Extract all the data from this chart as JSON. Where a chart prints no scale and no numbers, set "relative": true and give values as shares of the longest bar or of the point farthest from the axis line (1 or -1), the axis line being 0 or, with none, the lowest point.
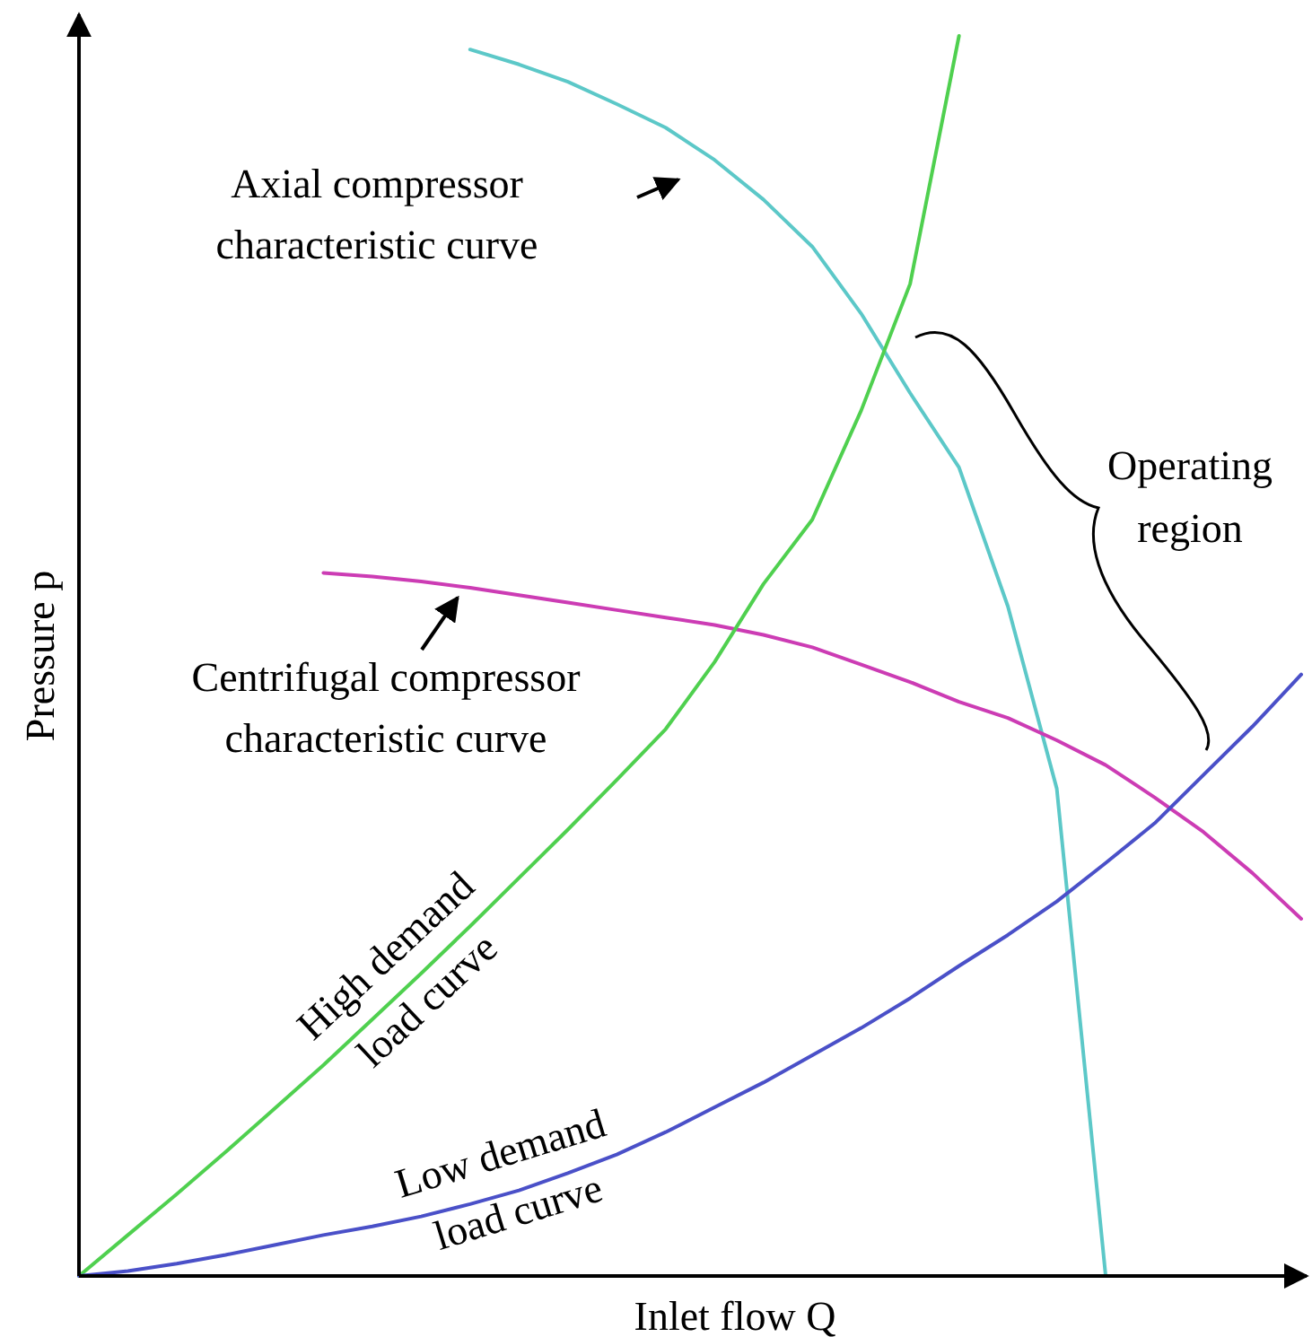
{
  "chart_data": {
    "type": "line",
    "relative": true,
    "xlabel": "Inlet flow Q",
    "ylabel": "Pressure p",
    "marker": "none",
    "line_style": "solid",
    "categories": [
      null,
      null,
      null,
      null,
      null,
      null,
      null,
      null,
      null,
      null,
      null,
      null,
      null,
      null,
      null,
      null,
      null,
      null,
      null,
      null,
      null,
      null,
      null,
      null,
      null,
      null
    ],
    "series": [
      {
        "name": "Axial compressor characteristic curve",
        "color": "#5cc8c8",
        "values": [
          null,
          null,
          null,
          null,
          null,
          null,
          null,
          null,
          0.989,
          0.977,
          0.963,
          0.945,
          0.926,
          0.9,
          0.868,
          0.83,
          0.776,
          0.712,
          0.652,
          0.54,
          0.393,
          0,
          null,
          null,
          null,
          null
        ]
      },
      {
        "name": "Centrifugal compressor characteristic curve",
        "color": "#cc3cb4",
        "values": [
          null,
          null,
          null,
          null,
          null,
          0.567,
          0.564,
          0.56,
          0.555,
          0.549,
          0.543,
          0.537,
          0.531,
          0.525,
          0.517,
          0.507,
          0.493,
          0.479,
          0.463,
          0.45,
          0.432,
          0.412,
          0.386,
          0.358,
          0.325,
          0.288
        ]
      },
      {
        "name": "High demand load curve",
        "color": "#4fd04f",
        "values": [
          0,
          0.033,
          0.066,
          0.1,
          0.135,
          0.17,
          0.207,
          0.244,
          0.282,
          0.321,
          0.36,
          0.4,
          0.441,
          0.495,
          0.558,
          0.61,
          0.698,
          0.8,
          1.0,
          null,
          null,
          null,
          null,
          null,
          null,
          null
        ]
      },
      {
        "name": "Low demand load curve",
        "color": "#4a50c8",
        "values": [
          0,
          0.004,
          0.01,
          0.017,
          0.025,
          0.033,
          0.04,
          0.048,
          0.058,
          0.069,
          0.083,
          0.098,
          0.116,
          0.136,
          0.156,
          0.178,
          0.2,
          0.224,
          0.25,
          0.275,
          0.302,
          0.333,
          0.365,
          0.404,
          0.443,
          0.485
        ]
      }
    ],
    "annotations": [
      "Operating region"
    ]
  }
}
